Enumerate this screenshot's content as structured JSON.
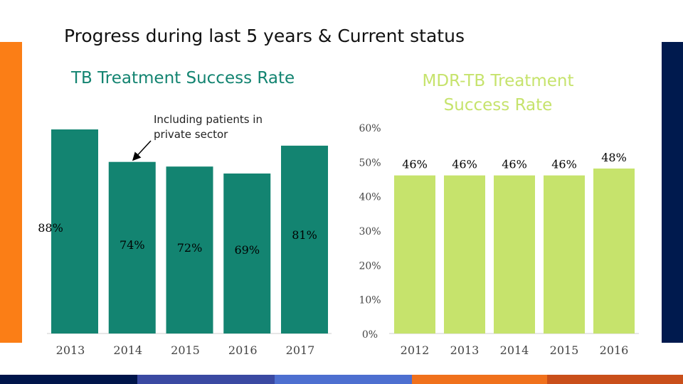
{
  "page": {
    "title": "Progress during last 5 years & Current status"
  },
  "colors": {
    "left_accent": "#fb7e16",
    "right_accent": "#001a4e",
    "tb_bar": "#138471",
    "mdr_bar": "#c6e36c",
    "title_teal": "#138471",
    "mdr_title": "#c6e36c",
    "strip": [
      "#00154a",
      "#3a49a2",
      "#4d6fd0",
      "#f0711c",
      "#c94f1a"
    ]
  },
  "chart_data": [
    {
      "type": "bar",
      "title": "TB Treatment Success Rate",
      "categories": [
        "2013",
        "2014",
        "2015",
        "2016",
        "2017"
      ],
      "values": [
        88,
        74,
        72,
        69,
        81
      ],
      "value_labels": [
        "88%",
        "74%",
        "72%",
        "69%",
        "81%"
      ],
      "annotation": {
        "lines": [
          "Including patients in",
          "private sector"
        ],
        "target": "2014"
      },
      "grid": false
    },
    {
      "type": "bar",
      "title_lines": [
        "MDR-TB Treatment",
        "Success Rate"
      ],
      "categories": [
        "2012",
        "2013",
        "2014",
        "2015",
        "2016"
      ],
      "values": [
        46,
        46,
        46,
        46,
        48
      ],
      "value_labels": [
        "46%",
        "46%",
        "46%",
        "46%",
        "48%"
      ],
      "yticks": [
        0,
        10,
        20,
        30,
        40,
        50,
        60
      ],
      "ytick_labels": [
        "0%",
        "10%",
        "20%",
        "30%",
        "40%",
        "50%",
        "60%"
      ],
      "ylim": [
        0,
        60
      ],
      "grid": false
    }
  ]
}
